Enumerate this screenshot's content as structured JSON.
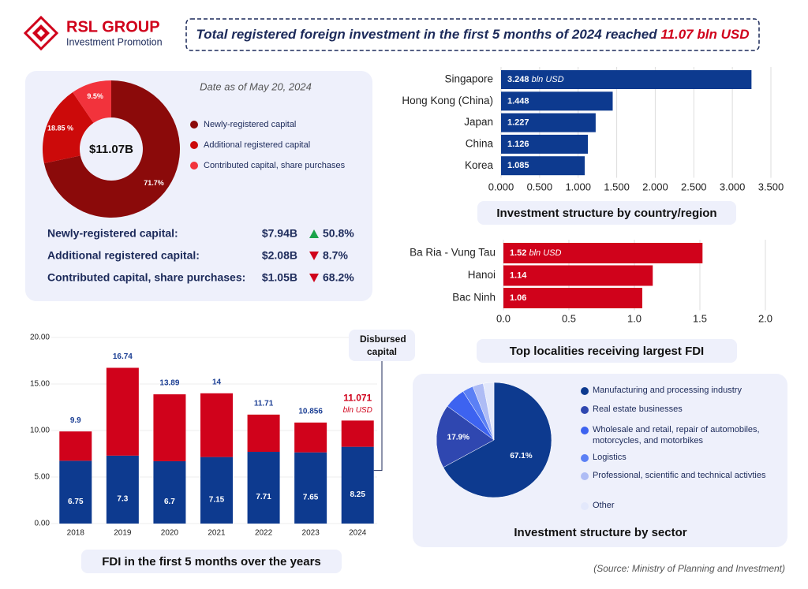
{
  "logo": {
    "name": "RSL GROUP",
    "tagline": "Investment Promotion"
  },
  "headline": {
    "text": "Total registered foreign investment in the first 5 months of 2024 reached ",
    "highlight": "11.07 bln USD"
  },
  "summary": [
    {
      "label": "Newly-registered capital:",
      "amount": "$7.94B",
      "change": "50.8%",
      "direction": "up"
    },
    {
      "label": "Additional registered capital:",
      "amount": "$2.08B",
      "change": "8.7%",
      "direction": "down"
    },
    {
      "label": "Contributed capital, share purchases:",
      "amount": "$1.05B",
      "change": "68.2%",
      "direction": "down"
    }
  ],
  "chart_data": [
    {
      "type": "donut",
      "subtitle": "Date as of May 20, 2024",
      "center_label": "$11.07B",
      "categories": [
        "Newly-registered capital",
        "Additional registered capital",
        "Contributed capital, share purchases"
      ],
      "values": [
        71.7,
        18.85,
        9.5
      ],
      "value_labels": [
        "71.7%",
        "18.85 %",
        "9.5%"
      ],
      "colors": [
        "#8b0a0a",
        "#cc0a0a",
        "#f2333c"
      ]
    },
    {
      "type": "hbar",
      "title": "Investment structure by country/region",
      "categories": [
        "Singapore",
        "Hong Kong (China)",
        "Japan",
        "China",
        "Korea"
      ],
      "values": [
        3.248,
        1.448,
        1.227,
        1.126,
        1.085
      ],
      "value_unit": "bln USD",
      "color": "#0d3a8f",
      "xlim": [
        0,
        3.5
      ],
      "xticks": [
        {
          "value": 0,
          "label": "0.000"
        },
        {
          "value": 0.5,
          "label": "0.500"
        },
        {
          "value": 1,
          "label": "1.000"
        },
        {
          "value": 1.5,
          "label": "1.500"
        },
        {
          "value": 2,
          "label": "2.000"
        },
        {
          "value": 2.5,
          "label": "2.500"
        },
        {
          "value": 3,
          "label": "3.000"
        },
        {
          "value": 3.5,
          "label": "3.500"
        }
      ],
      "grid": true
    },
    {
      "type": "hbar",
      "title": "Top localities receiving largest FDI",
      "categories": [
        "Ba Ria - Vung Tau",
        "Hanoi",
        "Bac Ninh"
      ],
      "values": [
        1.52,
        1.14,
        1.06
      ],
      "value_unit": "bln USD",
      "color": "#d0021b",
      "xlim": [
        0,
        2
      ],
      "xticks": [
        {
          "value": 0,
          "label": "0.0"
        },
        0.5,
        {
          "value": 1,
          "label": "1.0"
        },
        1.5,
        {
          "value": 2,
          "label": "2.0"
        }
      ],
      "grid": true
    },
    {
      "type": "stacked_bar",
      "title": "FDI in the first 5 months over the years",
      "categories": [
        "2018",
        "2019",
        "2020",
        "2021",
        "2022",
        "2023",
        "2024"
      ],
      "series": [
        {
          "name": "Disbursed capital",
          "color": "#0d3a8f",
          "values": [
            6.75,
            7.3,
            6.7,
            7.15,
            7.71,
            7.65,
            8.25
          ]
        },
        {
          "color": "#d0021b",
          "values": [
            3.15,
            9.44,
            7.19,
            6.85,
            4.0,
            3.206,
            2.821
          ]
        }
      ],
      "totals": [
        9.9,
        16.74,
        13.89,
        14,
        11.71,
        10.856,
        11.071
      ],
      "total_unit": "bln USD",
      "total_color": "#1c3f94",
      "highlight_color": "#d0021b",
      "ylim": [
        0,
        20
      ],
      "yticks": [
        {
          "value": 0,
          "label": "0.00"
        },
        {
          "value": 5,
          "label": "5.00"
        },
        {
          "value": 10,
          "label": "10.00"
        },
        {
          "value": 15,
          "label": "15.00"
        },
        {
          "value": 20,
          "label": "20.00"
        }
      ],
      "grid": true
    },
    {
      "type": "pie",
      "title": "Investment structure by sector",
      "categories": [
        "Manufacturing and processing industry",
        "Real estate businesses",
        "Wholesale and retail, repair of automobiles, motorcycles, and motorbikes",
        "Logistics",
        "Professional, scientific and technical activties",
        "Other"
      ],
      "values": [
        67.1,
        17.9,
        6,
        3,
        3,
        3
      ],
      "value_labels": [
        "67.1%",
        "17.9%",
        null,
        null,
        null,
        null
      ],
      "colors": [
        "#0d3a8f",
        "#2f47b0",
        "#3d63f0",
        "#5b80f5",
        "#aebcf5",
        "#e3e8fb"
      ]
    }
  ],
  "source": "(Source: Ministry of Planning and Investment)"
}
